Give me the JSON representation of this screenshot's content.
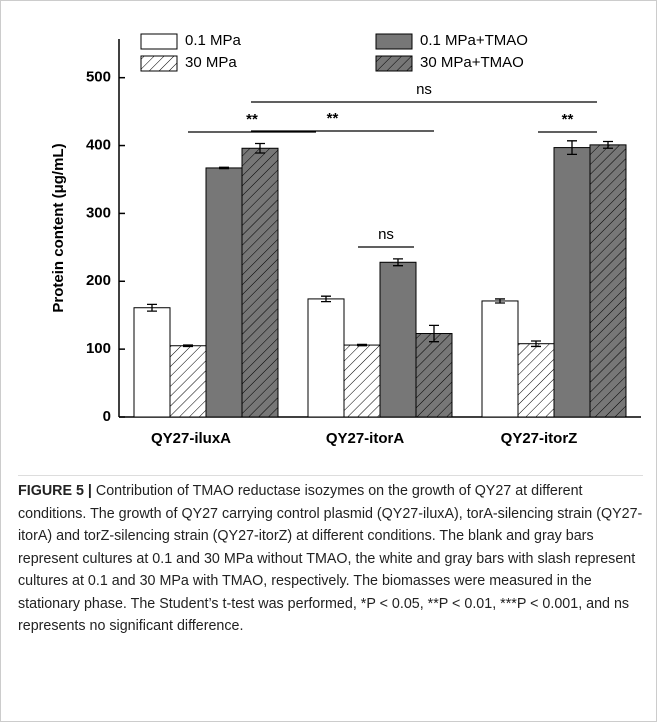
{
  "chart_data": {
    "type": "bar",
    "ylabel": "Protein content (μg/mL)",
    "categories": [
      "QY27-iluxA",
      "QY27-itorA",
      "QY27-itorZ"
    ],
    "series": [
      {
        "name": "0.1 MPa",
        "color": "#ffffff",
        "hatch": false,
        "values": [
          161,
          174,
          171
        ],
        "errors": [
          5,
          4,
          3
        ]
      },
      {
        "name": "30 MPa",
        "color": "#ffffff",
        "hatch": true,
        "values": [
          105,
          106,
          108
        ],
        "errors": [
          1,
          1,
          4
        ]
      },
      {
        "name": "0.1 MPa+TMAO",
        "color": "#777777",
        "hatch": false,
        "values": [
          367,
          228,
          397
        ],
        "errors": [
          1,
          5,
          10
        ]
      },
      {
        "name": "30 MPa+TMAO",
        "color": "#777777",
        "hatch": true,
        "values": [
          396,
          123,
          401
        ],
        "errors": [
          7,
          12,
          5
        ]
      }
    ],
    "annotations": [
      "**",
      "**",
      "ns",
      "ns",
      "**"
    ],
    "ylim": [
      0,
      557
    ],
    "yticks": [
      0,
      100,
      200,
      300,
      400,
      500
    ],
    "legend": "top"
  },
  "caption": {
    "label": "FIGURE 5 |",
    "text": "Contribution of TMAO reductase isozymes on the growth of QY27 at different conditions. The growth of QY27 carrying control plasmid (QY27-iluxA), torA-silencing strain (QY27-itorA) and torZ-silencing strain (QY27-itorZ) at different conditions. The blank and gray bars represent cultures at 0.1 and 30 MPa without TMAO, the white and gray bars with slash represent cultures at 0.1 and 30 MPa with TMAO, respectively. The biomasses were measured in the stationary phase. The Student’s t-test was performed, *P < 0.05, **P < 0.01, ***P < 0.001, and ns represents no significant difference."
  }
}
